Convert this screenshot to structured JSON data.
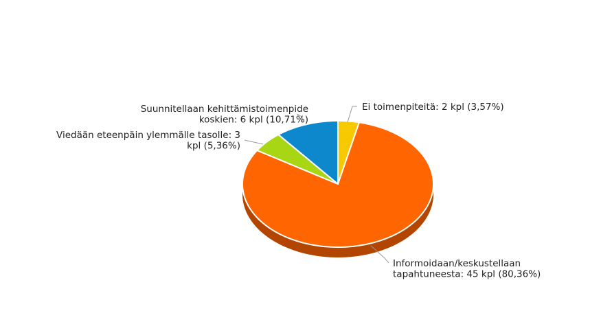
{
  "chart_data": {
    "type": "pie",
    "values": [
      2,
      45,
      3,
      6
    ],
    "value_labels": [
      [
        "Ei toimenpiteitä: 2 kpl (3,57%)"
      ],
      [
        "Informoidaan/keskustellaan",
        "tapahtuneesta: 45 kpl (80,36%)"
      ],
      [
        "Viedään eteenpäin ylemmälle tasolle: 3",
        "kpl (5,36%)"
      ],
      [
        "Suunnitellaan kehittämistoimenpide",
        "koskien: 6 kpl (10,71%)"
      ]
    ],
    "colors": [
      "#f7c900",
      "#ff6500",
      "#a8d514",
      "#0e88cd"
    ]
  }
}
